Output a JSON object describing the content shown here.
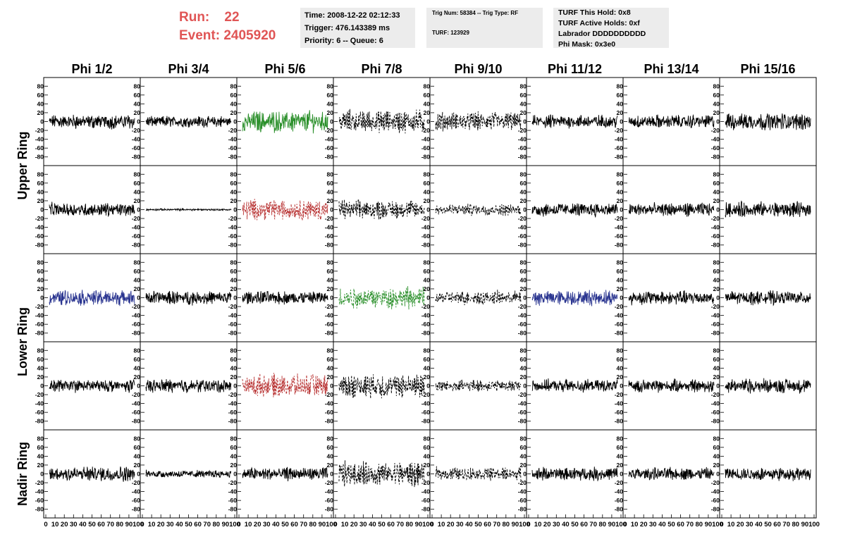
{
  "run_event": {
    "run_label": "Run:",
    "run_value": "22",
    "event_label": "Event:",
    "event_value": "2405920"
  },
  "info": {
    "time": "Time: 2008-12-22 02:12:33",
    "trigger": "Trigger: 476.143389 ms",
    "priority": "Priority: 6 -- Queue: 6",
    "trig_num": "Trig Num: 58384 -- Trig Type: RF",
    "turf": "TURF: 123929",
    "turf_this_hold": "TURF This Hold: 0x8",
    "turf_active_holds": "TURF Active Holds: 0xf",
    "labrador": "Labrador DDDDDDDDDD",
    "phi_mask": "Phi Mask: 0x3e0"
  },
  "colors": {
    "black": "#000000",
    "green": "#2a8f2a",
    "red": "#b83232",
    "blue": "#2a3590",
    "run_text": "#e05555",
    "box_bg": "#ececec"
  },
  "chart_data": {
    "type": "line",
    "columns": [
      "Phi 1/2",
      "Phi 3/4",
      "Phi 5/6",
      "Phi 7/8",
      "Phi 9/10",
      "Phi 11/12",
      "Phi 13/14",
      "Phi 15/16"
    ],
    "row_labels": [
      "Upper Ring",
      "Lower Ring",
      "Nadir Ring"
    ],
    "ylim": [
      -90,
      90
    ],
    "xlim": [
      0,
      100
    ],
    "y_ticks": [
      -80,
      -60,
      -40,
      -20,
      0,
      20,
      40,
      60,
      80
    ],
    "x_ticks": [
      0,
      10,
      20,
      30,
      40,
      50,
      60,
      70,
      80,
      90,
      100
    ],
    "traces": [
      [
        {
          "color": "black",
          "style": "solid",
          "amp": 15
        },
        {
          "color": "black",
          "style": "solid",
          "amp": 12
        },
        {
          "color": "green",
          "style": "solid",
          "amp": 22
        },
        {
          "color": "black",
          "style": "dashed",
          "amp": 24
        },
        {
          "color": "black",
          "style": "dashed",
          "amp": 20
        },
        {
          "color": "black",
          "style": "solid",
          "amp": 14
        },
        {
          "color": "black",
          "style": "solid",
          "amp": 14
        },
        {
          "color": "black",
          "style": "solid",
          "amp": 18
        }
      ],
      [
        {
          "color": "black",
          "style": "solid",
          "amp": 14
        },
        {
          "color": "black",
          "style": "solid",
          "amp": 2
        },
        {
          "color": "red",
          "style": "dashed",
          "amp": 22
        },
        {
          "color": "black",
          "style": "dashed",
          "amp": 20
        },
        {
          "color": "black",
          "style": "dashed",
          "amp": 12
        },
        {
          "color": "black",
          "style": "solid",
          "amp": 14
        },
        {
          "color": "black",
          "style": "solid",
          "amp": 14
        },
        {
          "color": "black",
          "style": "solid",
          "amp": 16
        }
      ],
      [
        {
          "color": "blue",
          "style": "solid",
          "amp": 16
        },
        {
          "color": "black",
          "style": "solid",
          "amp": 14
        },
        {
          "color": "black",
          "style": "solid",
          "amp": 14
        },
        {
          "color": "green",
          "style": "dashed",
          "amp": 22
        },
        {
          "color": "black",
          "style": "dashed",
          "amp": 14
        },
        {
          "color": "blue",
          "style": "solid",
          "amp": 16
        },
        {
          "color": "black",
          "style": "solid",
          "amp": 15
        },
        {
          "color": "black",
          "style": "solid",
          "amp": 14
        }
      ],
      [
        {
          "color": "black",
          "style": "solid",
          "amp": 13
        },
        {
          "color": "black",
          "style": "solid",
          "amp": 14
        },
        {
          "color": "red",
          "style": "dashed",
          "amp": 24
        },
        {
          "color": "black",
          "style": "dashed",
          "amp": 26
        },
        {
          "color": "black",
          "style": "dashed",
          "amp": 12
        },
        {
          "color": "black",
          "style": "solid",
          "amp": 13
        },
        {
          "color": "black",
          "style": "solid",
          "amp": 13
        },
        {
          "color": "black",
          "style": "solid",
          "amp": 15
        }
      ],
      [
        {
          "color": "black",
          "style": "solid",
          "amp": 16
        },
        {
          "color": "black",
          "style": "solid",
          "amp": 8
        },
        {
          "color": "black",
          "style": "solid",
          "amp": 14
        },
        {
          "color": "black",
          "style": "dashed",
          "amp": 26
        },
        {
          "color": "black",
          "style": "dashed",
          "amp": 14
        },
        {
          "color": "black",
          "style": "solid",
          "amp": 14
        },
        {
          "color": "black",
          "style": "solid",
          "amp": 13
        },
        {
          "color": "black",
          "style": "solid",
          "amp": 14
        }
      ]
    ]
  }
}
